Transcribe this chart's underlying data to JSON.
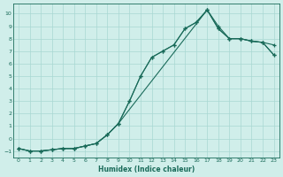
{
  "xlabel": "Humidex (Indice chaleur)",
  "background_color": "#d0eeea",
  "grid_color": "#a8d8d2",
  "line_color": "#1a6b5a",
  "xlim": [
    -0.5,
    23.5
  ],
  "ylim": [
    -1.5,
    10.8
  ],
  "xticks": [
    0,
    1,
    2,
    3,
    4,
    5,
    6,
    7,
    8,
    9,
    10,
    11,
    12,
    13,
    14,
    15,
    16,
    17,
    18,
    19,
    20,
    21,
    22,
    23
  ],
  "yticks": [
    -1,
    0,
    1,
    2,
    3,
    4,
    5,
    6,
    7,
    8,
    9,
    10
  ],
  "line1_x": [
    0,
    1,
    2,
    3,
    4,
    5,
    6,
    7,
    8,
    9,
    10,
    11,
    12,
    13,
    14,
    15,
    16,
    17,
    18,
    19,
    20,
    21,
    22,
    23
  ],
  "line1_y": [
    -0.8,
    -1.0,
    -1.0,
    -0.9,
    -0.8,
    -0.8,
    -0.6,
    -0.4,
    0.3,
    1.2,
    3.0,
    5.0,
    6.5,
    7.0,
    7.5,
    8.8,
    9.3,
    10.3,
    9.0,
    8.0,
    8.0,
    7.8,
    7.7,
    7.5
  ],
  "line2_x": [
    0,
    1,
    2,
    3,
    4,
    5,
    6,
    7,
    8,
    9,
    10,
    11,
    12,
    13,
    14,
    15,
    16,
    17,
    18,
    19,
    20,
    21,
    22,
    23
  ],
  "line2_y": [
    -0.8,
    -1.0,
    -1.0,
    -0.9,
    -0.8,
    -0.8,
    -0.6,
    -0.4,
    0.3,
    1.2,
    3.0,
    5.0,
    6.5,
    7.0,
    7.5,
    8.8,
    9.3,
    10.3,
    8.8,
    8.0,
    8.0,
    7.8,
    7.7,
    6.7
  ],
  "line3_x": [
    0,
    1,
    2,
    3,
    4,
    5,
    6,
    7,
    8,
    9,
    17,
    18,
    19,
    20,
    21,
    22,
    23
  ],
  "line3_y": [
    -0.8,
    -1.0,
    -1.0,
    -0.9,
    -0.8,
    -0.8,
    -0.6,
    -0.4,
    0.3,
    1.2,
    10.3,
    8.8,
    8.0,
    8.0,
    7.8,
    7.7,
    6.7
  ]
}
